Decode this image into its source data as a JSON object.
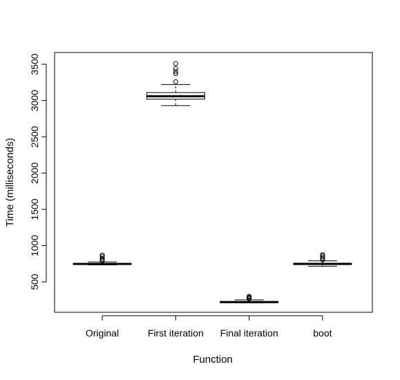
{
  "chart_data": {
    "type": "boxplot",
    "xlabel": "Function",
    "ylabel": "Time (milliseconds)",
    "categories": [
      "Original",
      "First iteration",
      "Final iteration",
      "boot"
    ],
    "y_ticks": [
      500,
      1000,
      1500,
      2000,
      2500,
      3000,
      3500
    ],
    "ylim": [
      130,
      3680
    ],
    "grid": false,
    "boxes": [
      {
        "category": "Original",
        "whisker_low": 735,
        "q1": 740,
        "median": 748,
        "q3": 755,
        "whisker_high": 775,
        "outliers": [
          790,
          805,
          825,
          850,
          870
        ]
      },
      {
        "category": "First iteration",
        "whisker_low": 2930,
        "q1": 3020,
        "median": 3060,
        "q3": 3110,
        "whisker_high": 3220,
        "outliers": [
          3260,
          3370,
          3400,
          3440,
          3510
        ]
      },
      {
        "category": "Final iteration",
        "whisker_low": 212,
        "q1": 216,
        "median": 222,
        "q3": 230,
        "whisker_high": 252,
        "outliers": [
          265,
          280,
          290,
          300
        ]
      },
      {
        "category": "boot",
        "whisker_low": 715,
        "q1": 738,
        "median": 748,
        "q3": 758,
        "whisker_high": 790,
        "outliers": [
          805,
          820,
          840,
          860,
          875
        ]
      }
    ]
  }
}
